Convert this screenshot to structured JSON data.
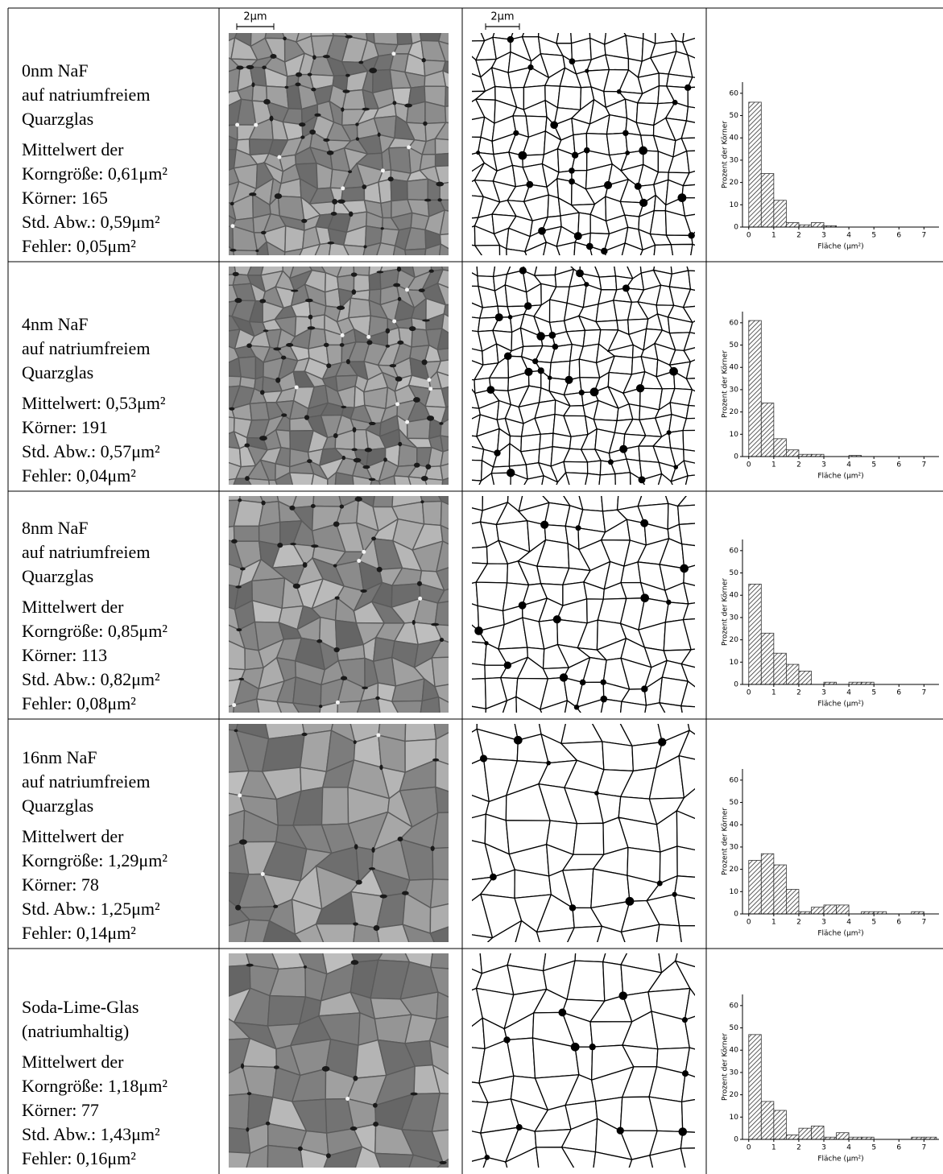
{
  "table": {
    "scale_bars": [
      "2µm",
      "2µm"
    ],
    "rows": [
      {
        "sample": [
          "0nm NaF",
          "auf natriumfreiem",
          "Quarzglas"
        ],
        "stats": [
          "Mittelwert der",
          "Korngröße: 0,61μm²",
          "Körner: 165",
          "Std. Abw.: 0,59μm²",
          "Fehler: 0,05μm²"
        ]
      },
      {
        "sample": [
          "4nm NaF",
          "auf natriumfreiem",
          "Quarzglas"
        ],
        "stats": [
          "Mittelwert: 0,53μm²",
          "Körner: 191",
          "Std. Abw.: 0,57μm²",
          "Fehler: 0,04μm²"
        ]
      },
      {
        "sample": [
          "8nm NaF",
          "auf natriumfreiem",
          "Quarzglas"
        ],
        "stats": [
          "Mittelwert der",
          "Korngröße: 0,85μm²",
          "Körner: 113",
          "Std. Abw.: 0,82μm²",
          "Fehler: 0,08μm²"
        ]
      },
      {
        "sample": [
          "16nm NaF",
          "auf natriumfreiem",
          "Quarzglas"
        ],
        "stats": [
          "Mittelwert der",
          "Korngröße: 1,29μm²",
          "Körner: 78",
          "Std. Abw.: 1,25μm²",
          "Fehler: 0,14μm²"
        ]
      },
      {
        "sample": [
          "Soda-Lime-Glas",
          "(natriumhaltig)"
        ],
        "stats": [
          "Mittelwert der",
          "Korngröße: 1,18μm²",
          "Körner: 77",
          "Std. Abw.: 1,43μm²",
          "Fehler: 0,16μm²"
        ]
      }
    ]
  },
  "chart_data": [
    {
      "type": "histogram",
      "xlabel": "Fläche (µm²)",
      "ylabel": "Prozent der Körner",
      "color": "#333333",
      "bins": [
        0,
        0.5,
        1,
        1.5,
        2,
        2.5,
        3,
        3.5,
        4,
        4.5,
        5,
        5.5,
        6,
        6.5,
        7,
        7.5
      ],
      "values": [
        56,
        24,
        12,
        2,
        1,
        2,
        0.6,
        0,
        0,
        0,
        0,
        0,
        0,
        0,
        0
      ],
      "xlim": [
        -0.25,
        7.6
      ],
      "ylim": [
        0,
        65
      ],
      "xticks": [
        0,
        1,
        2,
        3,
        4,
        5,
        6,
        7
      ],
      "yticks": [
        0,
        10,
        20,
        30,
        40,
        50,
        60
      ]
    },
    {
      "type": "histogram",
      "xlabel": "Fläche (µm²)",
      "ylabel": "Prozent der Körner",
      "color": "#333333",
      "bins": [
        0,
        0.5,
        1,
        1.5,
        2,
        2.5,
        3,
        3.5,
        4,
        4.5,
        5,
        5.5,
        6,
        6.5,
        7,
        7.5
      ],
      "values": [
        61,
        24,
        8,
        3,
        1,
        1,
        0,
        0,
        0.5,
        0,
        0,
        0,
        0,
        0,
        0
      ],
      "xlim": [
        -0.25,
        7.6
      ],
      "ylim": [
        0,
        65
      ],
      "xticks": [
        0,
        1,
        2,
        3,
        4,
        5,
        6,
        7
      ],
      "yticks": [
        0,
        10,
        20,
        30,
        40,
        50,
        60
      ]
    },
    {
      "type": "histogram",
      "xlabel": "Fläche (µm²)",
      "ylabel": "Prozent der Körner",
      "color": "#333333",
      "bins": [
        0,
        0.5,
        1,
        1.5,
        2,
        2.5,
        3,
        3.5,
        4,
        4.5,
        5,
        5.5,
        6,
        6.5,
        7,
        7.5
      ],
      "values": [
        45,
        23,
        14,
        9,
        6,
        0,
        1,
        0,
        1,
        1,
        0,
        0,
        0,
        0,
        0
      ],
      "xlim": [
        -0.25,
        7.6
      ],
      "ylim": [
        0,
        65
      ],
      "xticks": [
        0,
        1,
        2,
        3,
        4,
        5,
        6,
        7
      ],
      "yticks": [
        0,
        10,
        20,
        30,
        40,
        50,
        60
      ]
    },
    {
      "type": "histogram",
      "xlabel": "Fläche (µm²)",
      "ylabel": "Prozent der Körner",
      "color": "#333333",
      "bins": [
        0,
        0.5,
        1,
        1.5,
        2,
        2.5,
        3,
        3.5,
        4,
        4.5,
        5,
        5.5,
        6,
        6.5,
        7,
        7.5
      ],
      "values": [
        24,
        27,
        22,
        11,
        1,
        3,
        4,
        4,
        0,
        1,
        1,
        0,
        0,
        1,
        0
      ],
      "xlim": [
        -0.25,
        7.6
      ],
      "ylim": [
        0,
        65
      ],
      "xticks": [
        0,
        1,
        2,
        3,
        4,
        5,
        6,
        7
      ],
      "yticks": [
        0,
        10,
        20,
        30,
        40,
        50,
        60
      ]
    },
    {
      "type": "histogram",
      "xlabel": "Fläche (µm²)",
      "ylabel": "Prozent der Körner",
      "color": "#333333",
      "bins": [
        0,
        0.5,
        1,
        1.5,
        2,
        2.5,
        3,
        3.5,
        4,
        4.5,
        5,
        5.5,
        6,
        6.5,
        7,
        7.5
      ],
      "values": [
        47,
        17,
        13,
        2,
        5,
        6,
        1,
        3,
        1,
        1,
        0,
        0,
        0,
        1,
        1
      ],
      "xlim": [
        -0.25,
        7.6
      ],
      "ylim": [
        0,
        65
      ],
      "xticks": [
        0,
        1,
        2,
        3,
        4,
        5,
        6,
        7
      ],
      "yticks": [
        0,
        10,
        20,
        30,
        40,
        50,
        60
      ]
    }
  ]
}
